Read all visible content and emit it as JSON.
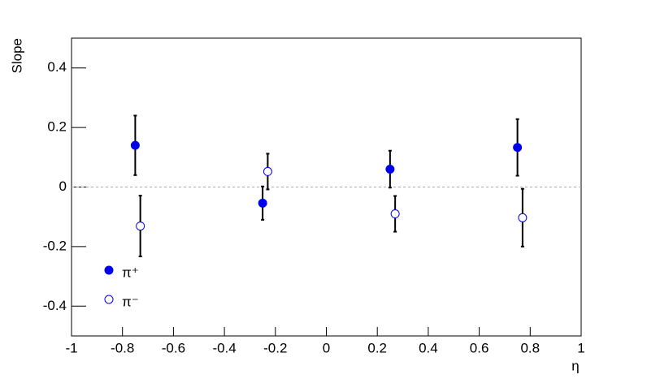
{
  "chart_data": {
    "type": "scatter",
    "xlabel": "η",
    "ylabel": "Slope",
    "xlim": [
      -1,
      1
    ],
    "ylim": [
      -0.5,
      0.5
    ],
    "xticks": [
      -1,
      -0.8,
      -0.6,
      -0.4,
      -0.2,
      0,
      0.2,
      0.4,
      0.6,
      0.8,
      1
    ],
    "yticks": [
      -0.4,
      -0.2,
      0,
      0.2,
      0.4
    ],
    "reference_line": 0,
    "legend": "bottom-left",
    "series": [
      {
        "name": "π⁺",
        "color": "#0000ee",
        "marker": "filled",
        "x": [
          -0.75,
          -0.25,
          0.25,
          0.75
        ],
        "values": [
          0.14,
          -0.054,
          0.06,
          0.133
        ],
        "errors": [
          0.1,
          0.056,
          0.062,
          0.095
        ]
      },
      {
        "name": "π⁻",
        "color": "#0000ee",
        "marker": "open",
        "x": [
          -0.73,
          -0.23,
          0.27,
          0.77
        ],
        "values": [
          -0.131,
          0.052,
          -0.09,
          -0.103
        ],
        "errors": [
          0.102,
          0.06,
          0.06,
          0.097
        ]
      }
    ]
  }
}
